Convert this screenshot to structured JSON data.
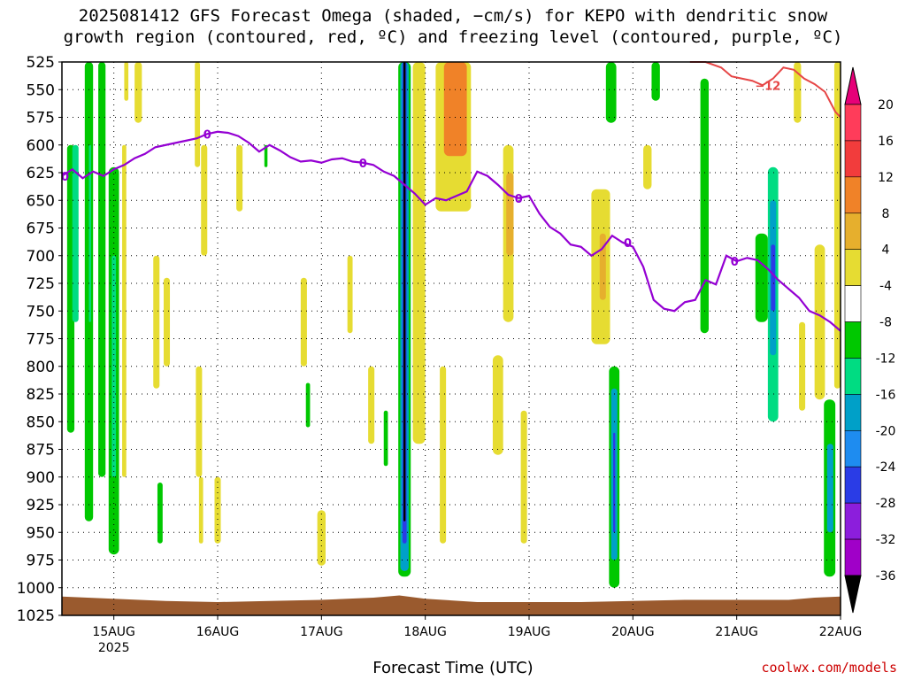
{
  "title": {
    "line1": "2025081412 GFS Forecast Omega (shaded, −cm/s) for KEPO with dendritic snow",
    "line2": "growth region (contoured, red, ºC) and freezing level (contoured, purple, ºC)"
  },
  "credit": "coolwx.com/models",
  "chart_data": {
    "type": "heatmap",
    "xlabel": "Forecast Time (UTC)",
    "x_ticks": [
      {
        "x": 15,
        "label": "15AUG",
        "sublabel": "2025"
      },
      {
        "x": 16,
        "label": "16AUG"
      },
      {
        "x": 17,
        "label": "17AUG"
      },
      {
        "x": 18,
        "label": "18AUG"
      },
      {
        "x": 19,
        "label": "19AUG"
      },
      {
        "x": 20,
        "label": "20AUG"
      },
      {
        "x": 21,
        "label": "21AUG"
      },
      {
        "x": 22,
        "label": "22AUG"
      }
    ],
    "xlim": [
      14.5,
      22.0
    ],
    "ylabel": "",
    "y_ticks": [
      525,
      550,
      575,
      600,
      625,
      650,
      675,
      700,
      725,
      750,
      775,
      800,
      825,
      850,
      875,
      900,
      925,
      950,
      975,
      1000,
      1025
    ],
    "ylim": [
      1025,
      525
    ],
    "colorbar": {
      "labels": [
        "20",
        "16",
        "12",
        "8",
        "4",
        "-4",
        "-8",
        "-12",
        "-16",
        "-20",
        "-24",
        "-28",
        "-32",
        "-36"
      ],
      "colors": [
        "#ff3c5a",
        "#f23c3c",
        "#f08228",
        "#e6af2d",
        "#e6dc32",
        "#ffffff",
        "#00c800",
        "#00dc82",
        "#00a0c8",
        "#1e8cf0",
        "#2a3ce6",
        "#8c1edc",
        "#a000c8",
        "#aaaaaa"
      ],
      "top_arrow_color": "#e60078",
      "bottom_arrow_color": "#000000"
    },
    "freezing_level": {
      "name": "freezing level (0 ºC)",
      "color": "#9400d3",
      "contour_label": "0",
      "x": [
        14.5,
        14.6,
        14.7,
        14.8,
        14.9,
        15.0,
        15.1,
        15.2,
        15.3,
        15.4,
        15.5,
        15.6,
        15.7,
        15.8,
        15.9,
        16.0,
        16.1,
        16.2,
        16.3,
        16.4,
        16.5,
        16.6,
        16.7,
        16.8,
        16.9,
        17.0,
        17.1,
        17.2,
        17.3,
        17.4,
        17.5,
        17.6,
        17.7,
        17.8,
        17.9,
        18.0,
        18.1,
        18.2,
        18.3,
        18.4,
        18.5,
        18.6,
        18.7,
        18.8,
        18.9,
        19.0,
        19.1,
        19.2,
        19.3,
        19.4,
        19.5,
        19.6,
        19.7,
        19.8,
        19.9,
        20.0,
        20.1,
        20.2,
        20.3,
        20.4,
        20.5,
        20.6,
        20.7,
        20.8,
        20.9,
        21.0,
        21.1,
        21.2,
        21.3,
        21.4,
        21.5,
        21.6,
        21.7,
        21.8,
        21.9,
        22.0
      ],
      "y": [
        628,
        622,
        630,
        624,
        628,
        622,
        618,
        612,
        608,
        602,
        600,
        598,
        596,
        594,
        590,
        588,
        589,
        592,
        598,
        606,
        600,
        605,
        611,
        615,
        614,
        616,
        613,
        612,
        615,
        616,
        618,
        624,
        628,
        636,
        644,
        654,
        648,
        650,
        646,
        642,
        624,
        628,
        636,
        645,
        648,
        646,
        662,
        674,
        680,
        690,
        692,
        700,
        694,
        682,
        688,
        692,
        710,
        740,
        748,
        750,
        742,
        740,
        722,
        726,
        700,
        705,
        702,
        704,
        712,
        722,
        730,
        738,
        750,
        754,
        760,
        768
      ]
    },
    "dgz_contour": {
      "name": "dendritic snow growth region (−12 ºC)",
      "color": "#e64646",
      "contour_label": "−12",
      "x": [
        20.55,
        20.7,
        20.85,
        20.95,
        21.05,
        21.15,
        21.25,
        21.35,
        21.45,
        21.55,
        21.65,
        21.75,
        21.85,
        21.95,
        22.0
      ],
      "y": [
        522,
        524,
        530,
        538,
        540,
        542,
        546,
        540,
        530,
        532,
        540,
        545,
        552,
        570,
        575
      ]
    },
    "omega_regions_note": "shaded omega features (cm/s), approximate",
    "omega_regions": [
      {
        "x0": 14.55,
        "x1": 14.62,
        "p0": 600,
        "p1": 860,
        "v": -4
      },
      {
        "x0": 14.6,
        "x1": 14.66,
        "p0": 600,
        "p1": 760,
        "v": -8
      },
      {
        "x0": 14.72,
        "x1": 14.8,
        "p0": 525,
        "p1": 940,
        "v": -4
      },
      {
        "x0": 14.76,
        "x1": 14.78,
        "p0": 600,
        "p1": 760,
        "v": -8
      },
      {
        "x0": 14.85,
        "x1": 14.92,
        "p0": 525,
        "p1": 900,
        "v": -4
      },
      {
        "x0": 14.95,
        "x1": 15.05,
        "p0": 620,
        "p1": 970,
        "v": -4
      },
      {
        "x0": 14.98,
        "x1": 15.02,
        "p0": 700,
        "p1": 900,
        "v": -8
      },
      {
        "x0": 15.08,
        "x1": 15.12,
        "p0": 600,
        "p1": 900,
        "v": 4
      },
      {
        "x0": 15.1,
        "x1": 15.14,
        "p0": 525,
        "p1": 560,
        "v": 4
      },
      {
        "x0": 15.2,
        "x1": 15.27,
        "p0": 525,
        "p1": 580,
        "v": 4
      },
      {
        "x0": 15.38,
        "x1": 15.44,
        "p0": 700,
        "p1": 820,
        "v": 4
      },
      {
        "x0": 15.48,
        "x1": 15.54,
        "p0": 720,
        "p1": 800,
        "v": 4
      },
      {
        "x0": 15.42,
        "x1": 15.47,
        "p0": 905,
        "p1": 960,
        "v": -4
      },
      {
        "x0": 15.78,
        "x1": 15.83,
        "p0": 525,
        "p1": 620,
        "v": 4
      },
      {
        "x0": 15.84,
        "x1": 15.9,
        "p0": 600,
        "p1": 700,
        "v": 4
      },
      {
        "x0": 15.79,
        "x1": 15.85,
        "p0": 800,
        "p1": 900,
        "v": 4
      },
      {
        "x0": 15.82,
        "x1": 15.86,
        "p0": 900,
        "p1": 960,
        "v": 4
      },
      {
        "x0": 15.97,
        "x1": 16.03,
        "p0": 900,
        "p1": 960,
        "v": 4
      },
      {
        "x0": 16.18,
        "x1": 16.24,
        "p0": 600,
        "p1": 660,
        "v": 4
      },
      {
        "x0": 16.45,
        "x1": 16.48,
        "p0": 600,
        "p1": 620,
        "v": -4
      },
      {
        "x0": 16.8,
        "x1": 16.86,
        "p0": 720,
        "p1": 800,
        "v": 4
      },
      {
        "x0": 16.85,
        "x1": 16.89,
        "p0": 815,
        "p1": 855,
        "v": -4
      },
      {
        "x0": 16.96,
        "x1": 17.04,
        "p0": 930,
        "p1": 980,
        "v": 4
      },
      {
        "x0": 17.25,
        "x1": 17.3,
        "p0": 700,
        "p1": 770,
        "v": 4
      },
      {
        "x0": 17.45,
        "x1": 17.51,
        "p0": 800,
        "p1": 870,
        "v": 4
      },
      {
        "x0": 17.6,
        "x1": 17.64,
        "p0": 840,
        "p1": 890,
        "v": -4
      },
      {
        "x0": 17.74,
        "x1": 17.86,
        "p0": 525,
        "p1": 990,
        "v": -4
      },
      {
        "x0": 17.76,
        "x1": 17.84,
        "p0": 525,
        "p1": 985,
        "v": -12
      },
      {
        "x0": 17.78,
        "x1": 17.82,
        "p0": 525,
        "p1": 960,
        "v": -20
      },
      {
        "x0": 17.79,
        "x1": 17.81,
        "p0": 525,
        "p1": 940,
        "v": -36
      },
      {
        "x0": 17.88,
        "x1": 18.0,
        "p0": 525,
        "p1": 870,
        "v": 4
      },
      {
        "x0": 18.1,
        "x1": 18.44,
        "p0": 525,
        "p1": 660,
        "v": 4
      },
      {
        "x0": 18.18,
        "x1": 18.4,
        "p0": 525,
        "p1": 610,
        "v": 12
      },
      {
        "x0": 18.14,
        "x1": 18.2,
        "p0": 800,
        "p1": 960,
        "v": 4
      },
      {
        "x0": 18.65,
        "x1": 18.75,
        "p0": 790,
        "p1": 880,
        "v": 4
      },
      {
        "x0": 18.75,
        "x1": 18.85,
        "p0": 600,
        "p1": 760,
        "v": 4
      },
      {
        "x0": 18.78,
        "x1": 18.85,
        "p0": 625,
        "p1": 700,
        "v": 8
      },
      {
        "x0": 18.92,
        "x1": 18.98,
        "p0": 840,
        "p1": 960,
        "v": 4
      },
      {
        "x0": 19.6,
        "x1": 19.78,
        "p0": 640,
        "p1": 780,
        "v": 4
      },
      {
        "x0": 19.68,
        "x1": 19.74,
        "p0": 680,
        "p1": 740,
        "v": 8
      },
      {
        "x0": 19.74,
        "x1": 19.84,
        "p0": 525,
        "p1": 580,
        "v": -4
      },
      {
        "x0": 19.77,
        "x1": 19.87,
        "p0": 800,
        "p1": 1000,
        "v": -4
      },
      {
        "x0": 19.79,
        "x1": 19.85,
        "p0": 820,
        "p1": 975,
        "v": -12
      },
      {
        "x0": 19.81,
        "x1": 19.83,
        "p0": 860,
        "p1": 950,
        "v": -20
      },
      {
        "x0": 20.1,
        "x1": 20.18,
        "p0": 600,
        "p1": 640,
        "v": 4
      },
      {
        "x0": 20.18,
        "x1": 20.26,
        "p0": 525,
        "p1": 560,
        "v": -4
      },
      {
        "x0": 20.65,
        "x1": 20.73,
        "p0": 540,
        "p1": 770,
        "v": -4
      },
      {
        "x0": 21.18,
        "x1": 21.3,
        "p0": 680,
        "p1": 760,
        "v": -4
      },
      {
        "x0": 21.3,
        "x1": 21.4,
        "p0": 620,
        "p1": 850,
        "v": -8
      },
      {
        "x0": 21.32,
        "x1": 21.38,
        "p0": 650,
        "p1": 790,
        "v": -12
      },
      {
        "x0": 21.33,
        "x1": 21.37,
        "p0": 690,
        "p1": 750,
        "v": -20
      },
      {
        "x0": 21.55,
        "x1": 21.62,
        "p0": 525,
        "p1": 580,
        "v": 4
      },
      {
        "x0": 21.6,
        "x1": 21.66,
        "p0": 760,
        "p1": 840,
        "v": 4
      },
      {
        "x0": 21.75,
        "x1": 21.85,
        "p0": 690,
        "p1": 830,
        "v": 4
      },
      {
        "x0": 21.84,
        "x1": 21.95,
        "p0": 830,
        "p1": 990,
        "v": -4
      },
      {
        "x0": 21.87,
        "x1": 21.93,
        "p0": 870,
        "p1": 950,
        "v": -12
      },
      {
        "x0": 21.94,
        "x1": 22.0,
        "p0": 525,
        "p1": 820,
        "v": 4
      }
    ],
    "terrain": {
      "name": "surface",
      "color": "#9a5a2e",
      "x": [
        14.5,
        15.0,
        15.5,
        16.0,
        16.5,
        17.0,
        17.5,
        17.75,
        18.0,
        18.5,
        19.0,
        19.5,
        20.0,
        20.5,
        21.0,
        21.5,
        21.75,
        22.0
      ],
      "surface_p": [
        1008,
        1010,
        1012,
        1013,
        1012,
        1011,
        1009,
        1007,
        1010,
        1013,
        1013,
        1013,
        1012,
        1011,
        1011,
        1011,
        1009,
        1008
      ]
    }
  }
}
